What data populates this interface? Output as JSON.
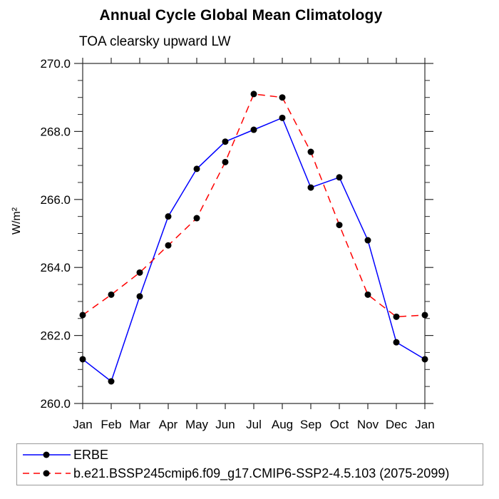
{
  "chart_data": {
    "type": "line",
    "title": "Annual Cycle Global Mean Climatology",
    "subtitle": "TOA clearsky upward LW",
    "ylabel": "W/m²",
    "ylim": [
      260.0,
      270.0
    ],
    "ytick_major_values": [
      260,
      262,
      264,
      266,
      268,
      270
    ],
    "ytick_major_labels": [
      "260.0",
      "262.0",
      "264.0",
      "266.0",
      "268.0",
      "270.0"
    ],
    "ytick_minor_step": 0.5,
    "x_categories": [
      "Jan",
      "Feb",
      "Mar",
      "Apr",
      "May",
      "Jun",
      "Jul",
      "Aug",
      "Sep",
      "Oct",
      "Nov",
      "Dec",
      "Jan"
    ],
    "grid": false,
    "legend_position": "bottom-left-box",
    "axis_color": "#2b2b2b",
    "marker_color": "#000000",
    "series": [
      {
        "name": "ERBE",
        "color": "#0000ff",
        "line_style": "solid",
        "marker": "filled-black-circle",
        "values": [
          261.3,
          260.65,
          263.15,
          265.5,
          266.9,
          267.7,
          268.05,
          268.4,
          266.35,
          266.65,
          264.8,
          261.8,
          261.3
        ]
      },
      {
        "name": "b.e21.BSSP245cmip6.f09_g17.CMIP6-SSP2-4.5.103 (2075-2099)",
        "color": "#ff0000",
        "line_style": "dashed",
        "marker": "filled-black-circle",
        "values": [
          262.6,
          263.2,
          263.85,
          264.65,
          265.45,
          267.1,
          269.1,
          269.0,
          267.4,
          265.25,
          263.2,
          262.55,
          262.6
        ]
      }
    ]
  }
}
